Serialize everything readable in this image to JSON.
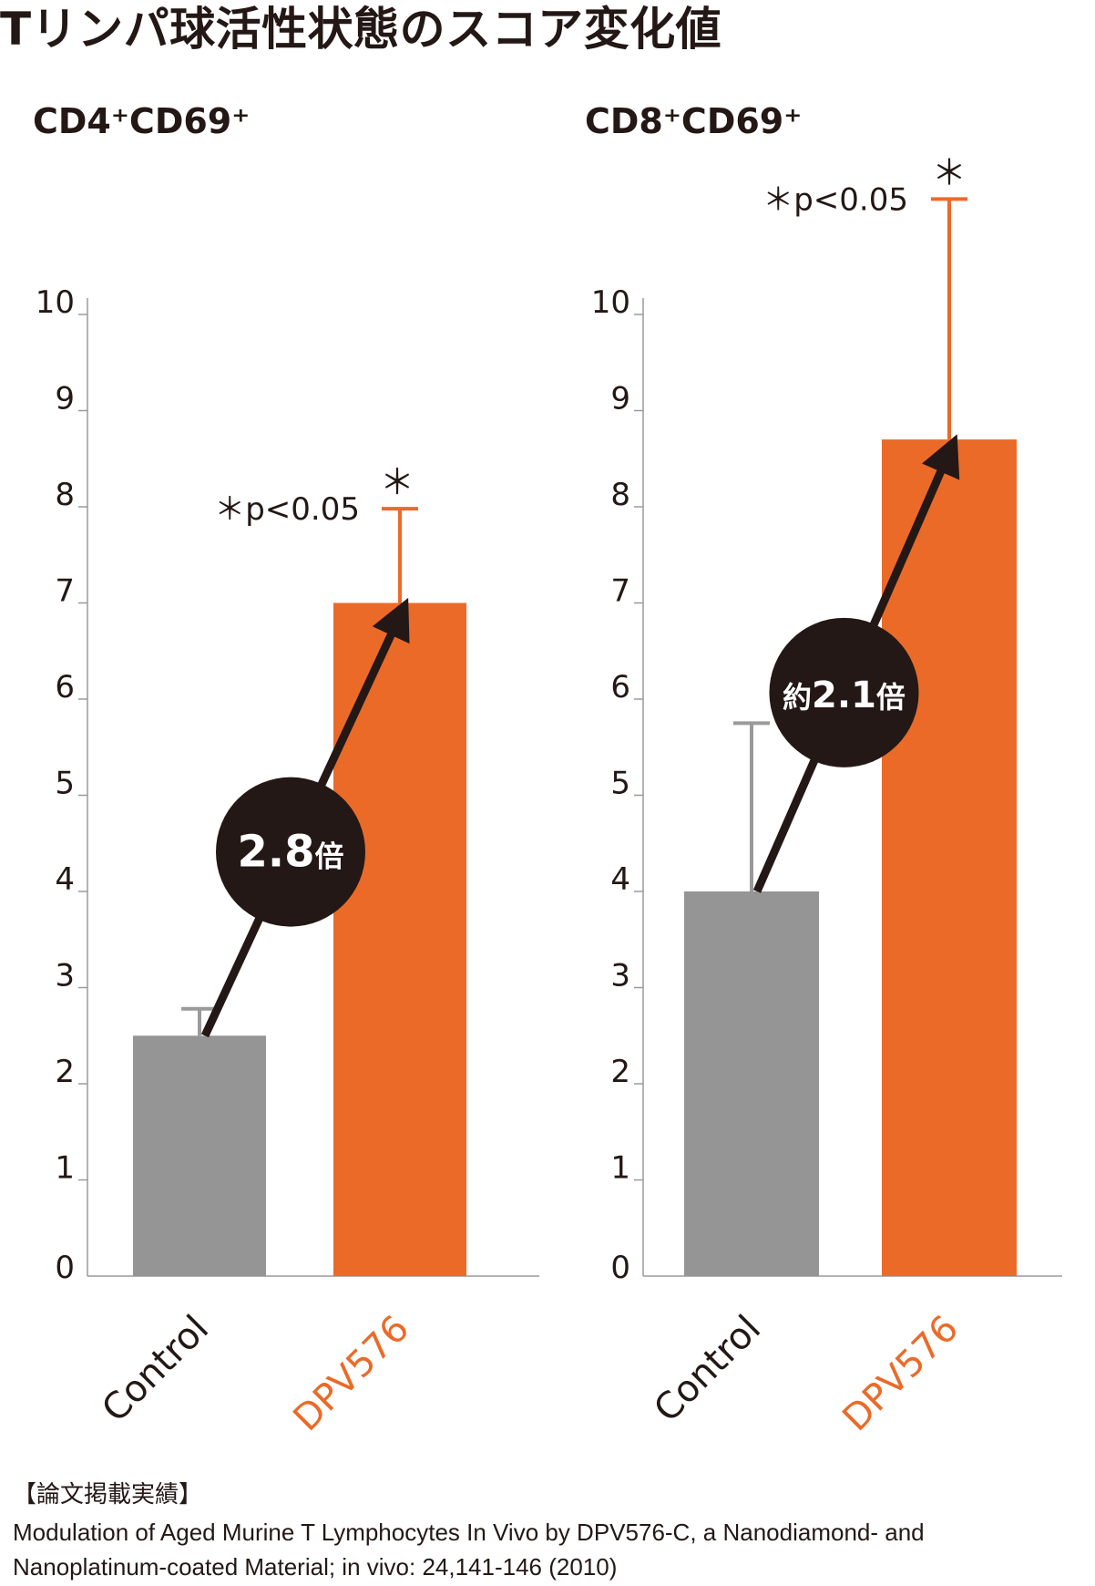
{
  "title": "Tリンパ球活性状態のスコア変化値",
  "colors": {
    "control": "#959595",
    "treatment": "#eb6a28",
    "text": "#231815",
    "axis": "#9a9a9a"
  },
  "chart_data": [
    {
      "type": "bar",
      "title": "CD4⁺CD69⁺",
      "categories": [
        "Control",
        "DPV576"
      ],
      "values": [
        2.5,
        7.0
      ],
      "error_top": [
        2.78,
        7.98
      ],
      "ylim": [
        0,
        10
      ],
      "yticks": [
        "0",
        "1",
        "2",
        "3",
        "4",
        "5",
        "6",
        "7",
        "8",
        "9",
        "10"
      ],
      "fold_label": {
        "prefix": "",
        "value": "2.8",
        "suffix": "倍"
      },
      "significance": {
        "mark": "＊",
        "note": "＊p<0.05"
      }
    },
    {
      "type": "bar",
      "title": "CD8⁺CD69⁺",
      "categories": [
        "Control",
        "DPV576"
      ],
      "values": [
        4.0,
        8.7
      ],
      "error_top": [
        5.75,
        11.2
      ],
      "ylim": [
        0,
        10
      ],
      "yticks": [
        "0",
        "1",
        "2",
        "3",
        "4",
        "5",
        "6",
        "7",
        "8",
        "9",
        "10"
      ],
      "fold_label": {
        "prefix": "約",
        "value": "2.1",
        "suffix": "倍"
      },
      "significance": {
        "mark": "＊",
        "note": "＊p<0.05"
      }
    }
  ],
  "reference": {
    "heading": "【論文掲載実績】",
    "line1": "Modulation of Aged Murine T Lymphocytes In Vivo by DPV576-C, a Nanodiamond- and",
    "line2": "Nanoplatinum-coated Material; in vivo: 24,141-146 (2010)"
  }
}
